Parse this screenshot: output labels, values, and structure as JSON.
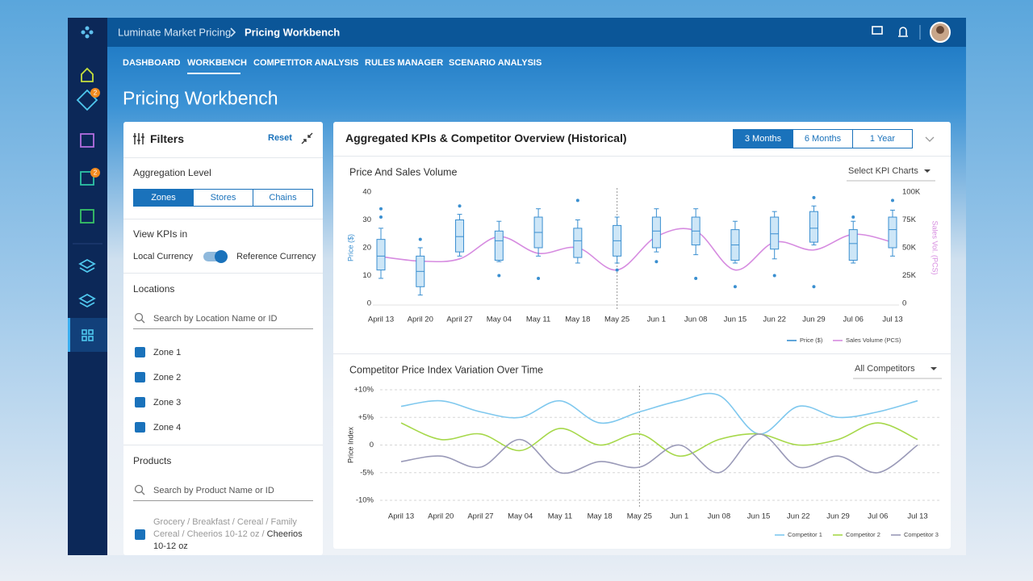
{
  "app": {
    "breadcrumb_root": "Luminate Market Pricing",
    "breadcrumb_current": "Pricing Workbench",
    "badges": [
      "2",
      "2"
    ]
  },
  "tabs": [
    "DASHBOARD",
    "WORKBENCH",
    "COMPETITOR ANALYSIS",
    "RULES MANAGER",
    "SCENARIO ANALYSIS"
  ],
  "page_title": "Pricing Workbench",
  "filters": {
    "title": "Filters",
    "reset": "Reset",
    "aggregation_label": "Aggregation Level",
    "aggregation_options": [
      "Zones",
      "Stores",
      "Chains"
    ],
    "view_kpis_label": "View KPIs in",
    "currency_left": "Local Currency",
    "currency_right": "Reference Currency",
    "locations_label": "Locations",
    "location_search": "Search by Location Name or ID",
    "zones": [
      "Zone 1",
      "Zone 2",
      "Zone 3",
      "Zone 4"
    ],
    "products_label": "Products",
    "product_search": "Search by Product Name or ID",
    "product_path": "Grocery / Breakfast / Cereal / Family Cereal / Cheerios 10-12 oz /",
    "product_name": "Cheerios 10-12 oz"
  },
  "overview": {
    "title": "Aggregated KPIs & Competitor Overview (Historical)",
    "ranges": [
      "3 Months",
      "6 Months",
      "1 Year"
    ]
  },
  "chart_data": [
    {
      "type": "box",
      "title": "Price And Sales Volume",
      "dropdown": "Select KPI Charts",
      "y_label": "Price ($)",
      "y2_label": "Sales Vol. (PCS)",
      "categories": [
        "April 13",
        "April 20",
        "April 27",
        "May 04",
        "May 11",
        "May 18",
        "May 25",
        "Jun 1",
        "Jun 08",
        "Jun 15",
        "Jun 22",
        "Jun 29",
        "Jul 06",
        "Jul 13"
      ],
      "ylim": [
        0,
        40
      ],
      "yticks": [
        0,
        10,
        20,
        30,
        40
      ],
      "y2lim": [
        0,
        100000
      ],
      "y2ticks": [
        0,
        {
          "value": 25000,
          "label": "25K"
        },
        {
          "value": 50000,
          "label": "50K"
        },
        {
          "value": 75000,
          "label": "75K"
        },
        {
          "value": 100000,
          "label": "100K"
        }
      ],
      "grid": false,
      "series": [
        {
          "name": "Price ($)",
          "color": "#3a8fd0",
          "boxes": [
            {
              "low": 9,
              "q1": 12,
              "median": 17,
              "q3": 23,
              "high": 27,
              "outliers": [
                34,
                31
              ]
            },
            {
              "low": 3,
              "q1": 6,
              "median": 11.5,
              "q3": 17,
              "high": 20,
              "outliers": [
                23
              ]
            },
            {
              "low": 17,
              "q1": 18.5,
              "median": 24,
              "q3": 30,
              "high": 32,
              "outliers": [
                35
              ]
            },
            {
              "low": 15,
              "q1": 15.5,
              "median": 22.5,
              "q3": 26,
              "high": 29.5,
              "outliers": [
                10
              ]
            },
            {
              "low": 17,
              "q1": 20,
              "median": 25.5,
              "q3": 31,
              "high": 34,
              "outliers": [
                9
              ]
            },
            {
              "low": 14.5,
              "q1": 16.5,
              "median": 22.5,
              "q3": 27,
              "high": 30,
              "outliers": [
                37
              ]
            },
            {
              "low": 14.5,
              "q1": 17,
              "median": 22.5,
              "q3": 28,
              "high": 31,
              "outliers": [
                12
              ]
            },
            {
              "low": 18.5,
              "q1": 20,
              "median": 26,
              "q3": 31,
              "high": 34,
              "outliers": [
                15
              ]
            },
            {
              "low": 17.5,
              "q1": 21,
              "median": 26,
              "q3": 31,
              "high": 34,
              "outliers": [
                9
              ]
            },
            {
              "low": 14.5,
              "q1": 15.5,
              "median": 21,
              "q3": 26.5,
              "high": 29.5,
              "outliers": [
                6
              ]
            },
            {
              "low": 16,
              "q1": 19.5,
              "median": 25,
              "q3": 31,
              "high": 33,
              "outliers": [
                10
              ]
            },
            {
              "low": 21,
              "q1": 22,
              "median": 27,
              "q3": 33,
              "high": 35,
              "outliers": [
                38,
                6
              ]
            },
            {
              "low": 14.5,
              "q1": 15.5,
              "median": 21.5,
              "q3": 26.5,
              "high": 29.5,
              "outliers": [
                31
              ]
            },
            {
              "low": 17,
              "q1": 20,
              "median": 26.5,
              "q3": 31,
              "high": 33.5,
              "outliers": [
                37
              ]
            }
          ]
        },
        {
          "name": "Sales Volume (PCS)",
          "color": "#d68be0",
          "axis": "y2",
          "values": [
            42000,
            38000,
            40000,
            60000,
            45000,
            50000,
            30000,
            60000,
            65000,
            30000,
            55000,
            48000,
            62000,
            55000
          ]
        }
      ]
    },
    {
      "type": "line",
      "title": "Competitor Price Index Variation Over Time",
      "dropdown": "All Competitors",
      "y_label": "Price Index",
      "categories": [
        "April 13",
        "April 20",
        "April 27",
        "May 04",
        "May 11",
        "May 18",
        "May 25",
        "Jun 1",
        "Jun 08",
        "Jun 15",
        "Jun 22",
        "Jun 29",
        "Jul 06",
        "Jul 13"
      ],
      "ylim": [
        -10,
        10
      ],
      "yticks": [
        {
          "value": -10,
          "label": "-10%"
        },
        {
          "value": -5,
          "label": "-5%"
        },
        0,
        {
          "value": 5,
          "label": "+5%"
        },
        {
          "value": 10,
          "label": "+10%"
        }
      ],
      "grid": true,
      "series": [
        {
          "name": "Competitor 1",
          "color": "#7fc8ee",
          "values": [
            7,
            8,
            6,
            5,
            8,
            4,
            6,
            8,
            9,
            2,
            7,
            5,
            6,
            8
          ]
        },
        {
          "name": "Competitor 2",
          "color": "#a6d84a",
          "values": [
            4,
            1,
            2,
            -1,
            3,
            0,
            2,
            -2,
            1,
            2,
            0,
            1,
            4,
            1
          ]
        },
        {
          "name": "Competitor 3",
          "color": "#9a9ab8",
          "values": [
            -3,
            -2,
            -4,
            1,
            -5,
            -3,
            -4,
            0,
            -5,
            2,
            -4,
            -2,
            -5,
            0
          ]
        }
      ]
    }
  ]
}
